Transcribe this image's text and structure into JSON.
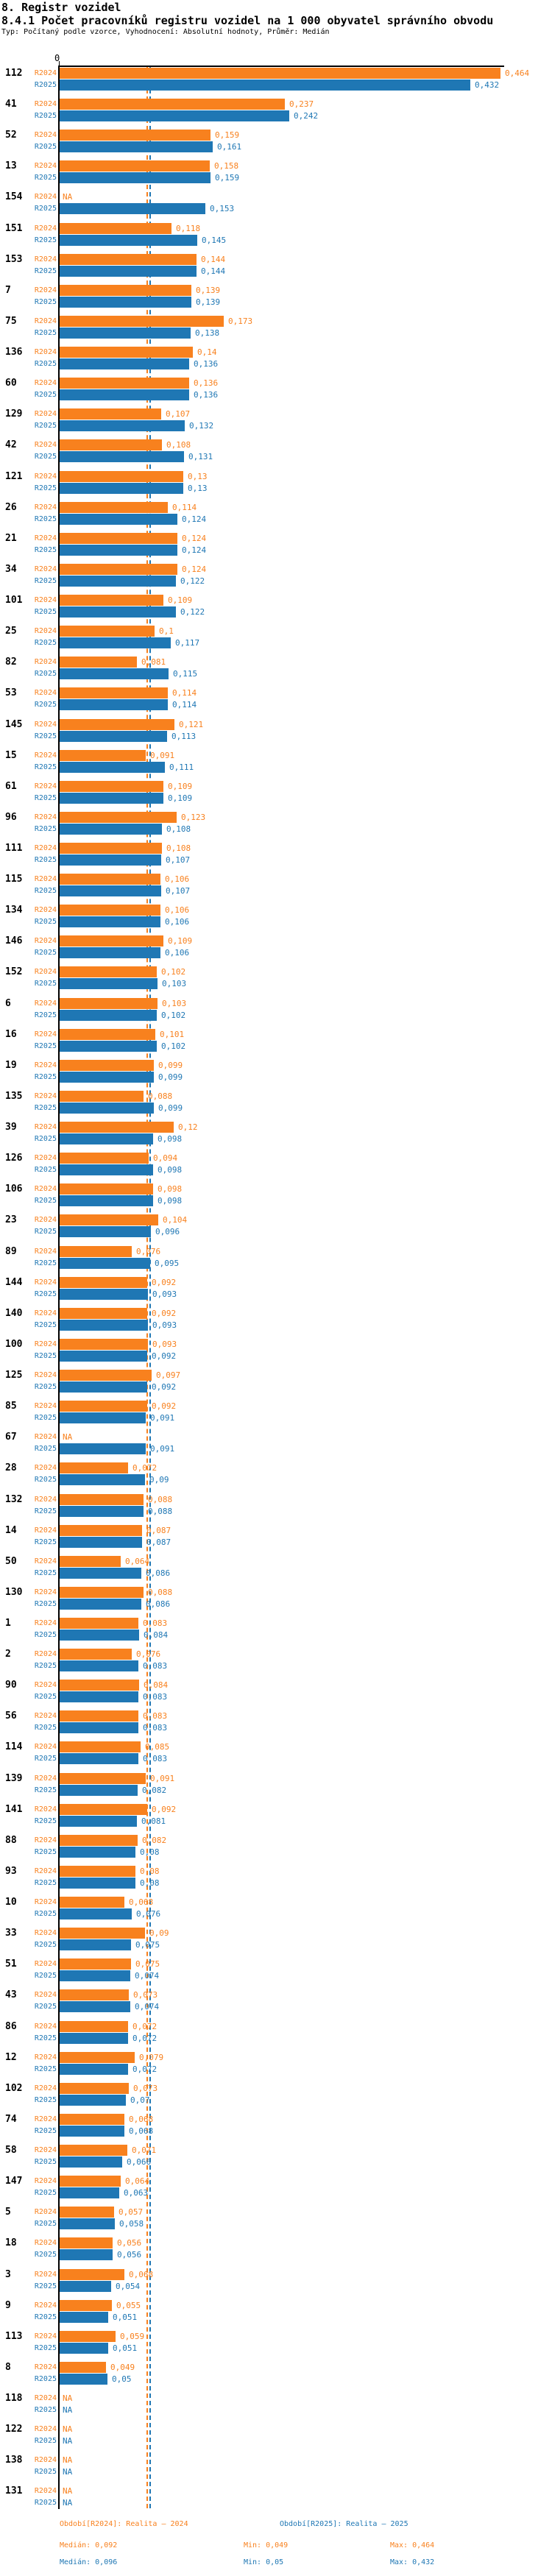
{
  "header": {
    "section_title": "8. Registr vozidel",
    "chart_title": "8.4.1 Počet pracovníků registru vozidel na 1 000 obyvatel správního obvodu",
    "meta": "Typ: Počítaný podle vzorce, Vyhodnocení: Absolutní hodnoty, Průměr: Medián"
  },
  "colors": {
    "r2024": "#f8811e",
    "r2025": "#1f77b4",
    "axis": "#000000"
  },
  "chart_data": {
    "type": "bar",
    "orientation": "horizontal",
    "title": "8.4.1 Počet pracovníků registru vozidel na 1 000 obyvatel správního obvodu",
    "xlabel": "",
    "ylabel": "",
    "xlim": [
      0,
      0.47
    ],
    "grid": false,
    "na_text": "NA",
    "axis": {
      "zero_label": "0"
    },
    "series": [
      {
        "name": "R2024",
        "color": "#f8811e",
        "median": 0.092,
        "min": 0.049,
        "max": 0.464
      },
      {
        "name": "R2025",
        "color": "#1f77b4",
        "median": 0.096,
        "min": 0.05,
        "max": 0.432
      }
    ],
    "rows": [
      {
        "id": "112",
        "r2024": "0,464",
        "r2025": "0,432"
      },
      {
        "id": "41",
        "r2024": "0,237",
        "r2025": "0,242"
      },
      {
        "id": "52",
        "r2024": "0,159",
        "r2025": "0,161"
      },
      {
        "id": "13",
        "r2024": "0,158",
        "r2025": "0,159"
      },
      {
        "id": "154",
        "r2024": "NA",
        "r2025": "0,153"
      },
      {
        "id": "151",
        "r2024": "0,118",
        "r2025": "0,145"
      },
      {
        "id": "153",
        "r2024": "0,144",
        "r2025": "0,144"
      },
      {
        "id": "7",
        "r2024": "0,139",
        "r2025": "0,139"
      },
      {
        "id": "75",
        "r2024": "0,173",
        "r2025": "0,138"
      },
      {
        "id": "136",
        "r2024": "0,14",
        "r2025": "0,136"
      },
      {
        "id": "60",
        "r2024": "0,136",
        "r2025": "0,136"
      },
      {
        "id": "129",
        "r2024": "0,107",
        "r2025": "0,132"
      },
      {
        "id": "42",
        "r2024": "0,108",
        "r2025": "0,131"
      },
      {
        "id": "121",
        "r2024": "0,13",
        "r2025": "0,13"
      },
      {
        "id": "26",
        "r2024": "0,114",
        "r2025": "0,124"
      },
      {
        "id": "21",
        "r2024": "0,124",
        "r2025": "0,124"
      },
      {
        "id": "34",
        "r2024": "0,124",
        "r2025": "0,122"
      },
      {
        "id": "101",
        "r2024": "0,109",
        "r2025": "0,122"
      },
      {
        "id": "25",
        "r2024": "0,1",
        "r2025": "0,117"
      },
      {
        "id": "82",
        "r2024": "0,081",
        "r2025": "0,115"
      },
      {
        "id": "53",
        "r2024": "0,114",
        "r2025": "0,114"
      },
      {
        "id": "145",
        "r2024": "0,121",
        "r2025": "0,113"
      },
      {
        "id": "15",
        "r2024": "0,091",
        "r2025": "0,111"
      },
      {
        "id": "61",
        "r2024": "0,109",
        "r2025": "0,109"
      },
      {
        "id": "96",
        "r2024": "0,123",
        "r2025": "0,108"
      },
      {
        "id": "111",
        "r2024": "0,108",
        "r2025": "0,107"
      },
      {
        "id": "115",
        "r2024": "0,106",
        "r2025": "0,107"
      },
      {
        "id": "134",
        "r2024": "0,106",
        "r2025": "0,106"
      },
      {
        "id": "146",
        "r2024": "0,109",
        "r2025": "0,106"
      },
      {
        "id": "152",
        "r2024": "0,102",
        "r2025": "0,103"
      },
      {
        "id": "6",
        "r2024": "0,103",
        "r2025": "0,102"
      },
      {
        "id": "16",
        "r2024": "0,101",
        "r2025": "0,102"
      },
      {
        "id": "19",
        "r2024": "0,099",
        "r2025": "0,099"
      },
      {
        "id": "135",
        "r2024": "0,088",
        "r2025": "0,099"
      },
      {
        "id": "39",
        "r2024": "0,12",
        "r2025": "0,098"
      },
      {
        "id": "126",
        "r2024": "0,094",
        "r2025": "0,098"
      },
      {
        "id": "106",
        "r2024": "0,098",
        "r2025": "0,098"
      },
      {
        "id": "23",
        "r2024": "0,104",
        "r2025": "0,096"
      },
      {
        "id": "89",
        "r2024": "0,076",
        "r2025": "0,095"
      },
      {
        "id": "144",
        "r2024": "0,092",
        "r2025": "0,093"
      },
      {
        "id": "140",
        "r2024": "0,092",
        "r2025": "0,093"
      },
      {
        "id": "100",
        "r2024": "0,093",
        "r2025": "0,092"
      },
      {
        "id": "125",
        "r2024": "0,097",
        "r2025": "0,092"
      },
      {
        "id": "85",
        "r2024": "0,092",
        "r2025": "0,091"
      },
      {
        "id": "67",
        "r2024": "NA",
        "r2025": "0,091"
      },
      {
        "id": "28",
        "r2024": "0,072",
        "r2025": "0,09"
      },
      {
        "id": "132",
        "r2024": "0,088",
        "r2025": "0,088"
      },
      {
        "id": "14",
        "r2024": "0,087",
        "r2025": "0,087"
      },
      {
        "id": "50",
        "r2024": "0,064",
        "r2025": "0,086"
      },
      {
        "id": "130",
        "r2024": "0,088",
        "r2025": "0,086"
      },
      {
        "id": "1",
        "r2024": "0,083",
        "r2025": "0,084"
      },
      {
        "id": "2",
        "r2024": "0,076",
        "r2025": "0,083"
      },
      {
        "id": "90",
        "r2024": "0,084",
        "r2025": "0,083"
      },
      {
        "id": "56",
        "r2024": "0,083",
        "r2025": "0,083"
      },
      {
        "id": "114",
        "r2024": "0,085",
        "r2025": "0,083"
      },
      {
        "id": "139",
        "r2024": "0,091",
        "r2025": "0,082"
      },
      {
        "id": "141",
        "r2024": "0,092",
        "r2025": "0,081"
      },
      {
        "id": "88",
        "r2024": "0,082",
        "r2025": "0,08"
      },
      {
        "id": "93",
        "r2024": "0,08",
        "r2025": "0,08"
      },
      {
        "id": "10",
        "r2024": "0,068",
        "r2025": "0,076"
      },
      {
        "id": "33",
        "r2024": "0,09",
        "r2025": "0,075"
      },
      {
        "id": "51",
        "r2024": "0,075",
        "r2025": "0,074"
      },
      {
        "id": "43",
        "r2024": "0,073",
        "r2025": "0,074"
      },
      {
        "id": "86",
        "r2024": "0,072",
        "r2025": "0,072"
      },
      {
        "id": "12",
        "r2024": "0,079",
        "r2025": "0,072"
      },
      {
        "id": "102",
        "r2024": "0,073",
        "r2025": "0,07"
      },
      {
        "id": "74",
        "r2024": "0,068",
        "r2025": "0,068"
      },
      {
        "id": "58",
        "r2024": "0,071",
        "r2025": "0,066"
      },
      {
        "id": "147",
        "r2024": "0,064",
        "r2025": "0,063"
      },
      {
        "id": "5",
        "r2024": "0,057",
        "r2025": "0,058"
      },
      {
        "id": "18",
        "r2024": "0,056",
        "r2025": "0,056"
      },
      {
        "id": "3",
        "r2024": "0,068",
        "r2025": "0,054"
      },
      {
        "id": "9",
        "r2024": "0,055",
        "r2025": "0,051"
      },
      {
        "id": "113",
        "r2024": "0,059",
        "r2025": "0,051"
      },
      {
        "id": "8",
        "r2024": "0,049",
        "r2025": "0,05"
      },
      {
        "id": "118",
        "r2024": "NA",
        "r2025": "NA"
      },
      {
        "id": "122",
        "r2024": "NA",
        "r2025": "NA"
      },
      {
        "id": "138",
        "r2024": "NA",
        "r2025": "NA"
      },
      {
        "id": "131",
        "r2024": "NA",
        "r2025": "NA"
      }
    ]
  },
  "legend": {
    "period_2024": "Období[R2024]: Realita – 2024",
    "period_2025": "Období[R2025]: Realita – 2025",
    "median_2024": "Medián: 0,092",
    "median_2025": "Medián: 0,096",
    "min_2024": "Min: 0,049",
    "min_2025": "Min: 0,05",
    "max_2024": "Max: 0,464",
    "max_2025": "Max: 0,432"
  }
}
